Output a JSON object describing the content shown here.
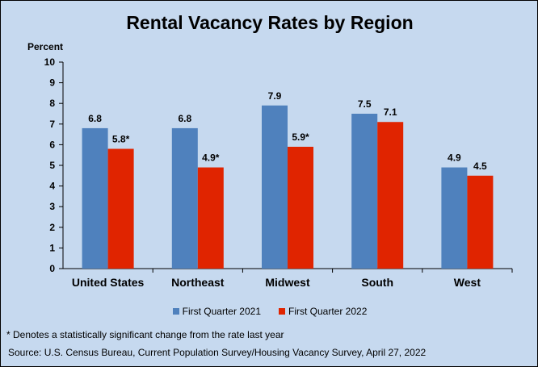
{
  "chart_data": {
    "type": "bar",
    "title": "Rental Vacancy Rates by Region",
    "ylabel": "Percent",
    "xlabel": "",
    "ylim": [
      0,
      10
    ],
    "yticks": [
      "0",
      "1",
      "2",
      "3",
      "4",
      "5",
      "6",
      "7",
      "8",
      "9",
      "10"
    ],
    "grid": false,
    "legend_position": "bottom",
    "categories": [
      "United States",
      "Northeast",
      "Midwest",
      "South",
      "West"
    ],
    "series": [
      {
        "name": "First Quarter 2021",
        "color": "#4f81bd",
        "values": [
          6.8,
          6.8,
          7.9,
          7.5,
          4.9
        ],
        "labels": [
          "6.8",
          "6.8",
          "7.9",
          "7.5",
          "4.9"
        ]
      },
      {
        "name": "First Quarter 2022",
        "color": "#e02400",
        "values": [
          5.8,
          4.9,
          5.9,
          7.1,
          4.5
        ],
        "labels": [
          "5.8*",
          "4.9*",
          "5.9*",
          "7.1",
          "4.5"
        ]
      }
    ]
  },
  "footnote": "* Denotes a statistically significant change from the rate last year",
  "source": "Source: U.S. Census Bureau, Current Population Survey/Housing Vacancy Survey, April 27, 2022",
  "background_color": "#c6d9ef"
}
